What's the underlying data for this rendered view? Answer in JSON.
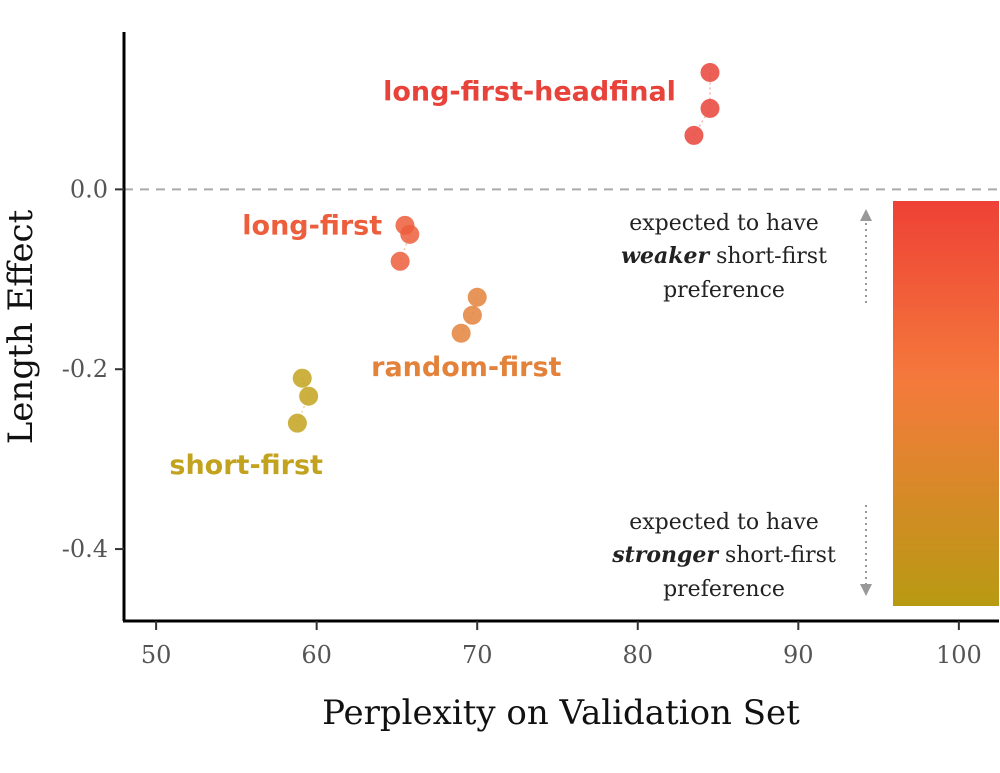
{
  "chart_data": {
    "type": "scatter",
    "xlabel": "Perplexity on Validation Set",
    "ylabel": "Length Effect",
    "xlim": [
      48,
      102.5
    ],
    "ylim": [
      -0.48,
      0.175
    ],
    "x_ticks": [
      50,
      60,
      70,
      80,
      90,
      100
    ],
    "y_ticks": [
      0.0,
      -0.2,
      -0.4
    ],
    "y_tick_labels": [
      "0.0",
      "-0.2",
      "-0.4"
    ],
    "reference_line": {
      "y": 0.0,
      "style": "dashed"
    },
    "grid": false,
    "series": [
      {
        "name": "long-first-headfinal",
        "color": "#E8433A",
        "points": [
          {
            "x": 84.5,
            "y": 0.13
          },
          {
            "x": 84.5,
            "y": 0.09
          },
          {
            "x": 83.5,
            "y": 0.06
          }
        ]
      },
      {
        "name": "long-first",
        "color": "#EC5E3C",
        "points": [
          {
            "x": 65.5,
            "y": -0.04
          },
          {
            "x": 65.8,
            "y": -0.05
          },
          {
            "x": 65.2,
            "y": -0.08
          }
        ]
      },
      {
        "name": "random-first",
        "color": "#E3823B",
        "points": [
          {
            "x": 70.0,
            "y": -0.12
          },
          {
            "x": 69.7,
            "y": -0.14
          },
          {
            "x": 69.0,
            "y": -0.16
          }
        ]
      },
      {
        "name": "short-first",
        "color": "#C3A21E",
        "points": [
          {
            "x": 59.1,
            "y": -0.21
          },
          {
            "x": 59.5,
            "y": -0.23
          },
          {
            "x": 58.8,
            "y": -0.26
          }
        ]
      }
    ],
    "gradient_bar": {
      "top_color": "#EE4136",
      "middle_color": "#F47A3C",
      "bottom_color": "#B89A12"
    },
    "annotations": {
      "top_line1": "expected to have",
      "top_em": "weaker",
      "top_rest": " short-first",
      "top_line3": "preference",
      "bottom_line1": "expected to have",
      "bottom_em": "stronger",
      "bottom_rest": " short-first",
      "bottom_line3": "preference"
    }
  }
}
